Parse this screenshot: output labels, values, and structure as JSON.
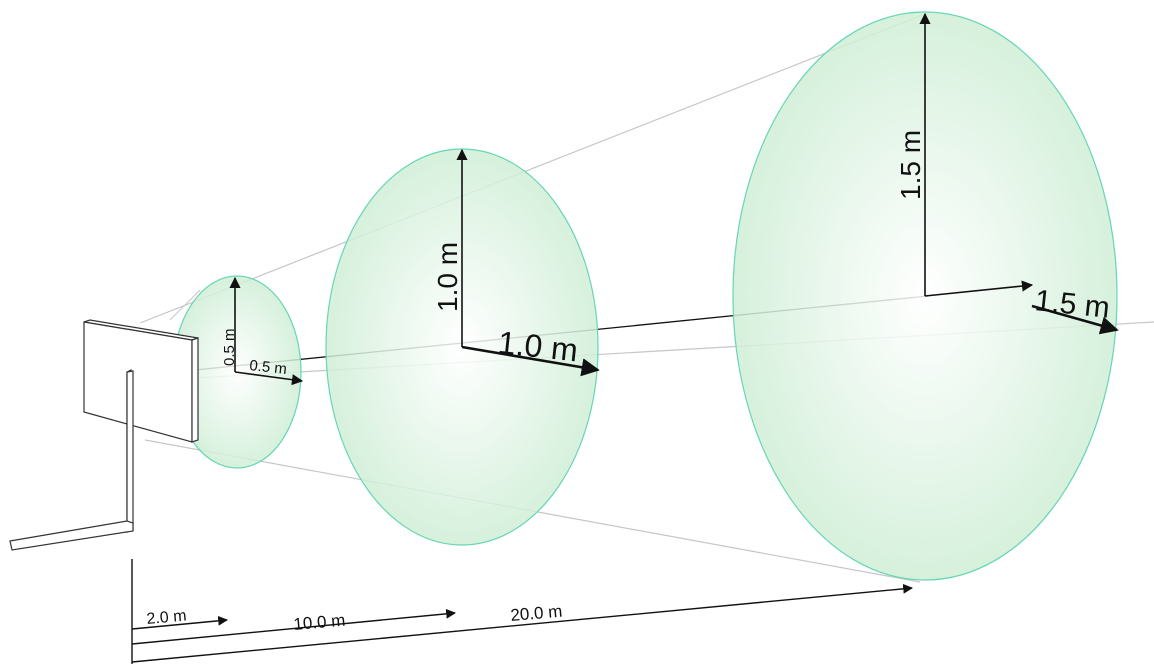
{
  "colors": {
    "disc_fill": "#cfeed6",
    "disc_edge": "#66d6b4",
    "lines": "#111111",
    "cone_lines": "#c6c6c6"
  },
  "discs": [
    {
      "height_label": "0.5 m",
      "width_label": "0.5 m"
    },
    {
      "height_label": "1.0 m",
      "width_label": "1.0 m"
    },
    {
      "height_label": "1.5 m",
      "width_label": "1.5 m"
    }
  ],
  "distances": [
    {
      "label": "2.0 m"
    },
    {
      "label": "10.0 m"
    },
    {
      "label": "20.0 m"
    }
  ]
}
